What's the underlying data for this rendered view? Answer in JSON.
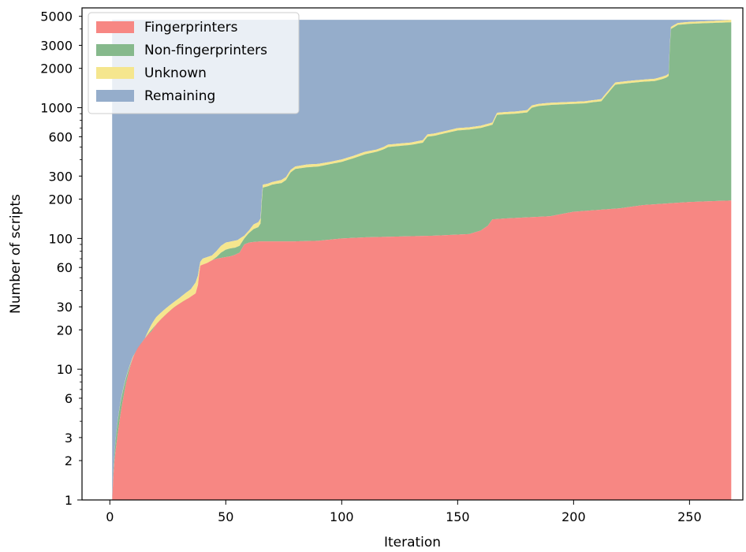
{
  "chart_data": {
    "type": "area",
    "stacked": true,
    "xlabel": "Iteration",
    "ylabel": "Number of scripts",
    "xlim": [
      -12,
      273
    ],
    "ylim": [
      1,
      5800
    ],
    "yscale": "log",
    "grid": false,
    "legend_position": "top-left",
    "x_ticks": [
      0,
      50,
      100,
      150,
      200,
      250
    ],
    "y_tick_labels": [
      "1",
      "2",
      "3",
      "6",
      "10",
      "20",
      "30",
      "60",
      "100",
      "200",
      "300",
      "600",
      "1000",
      "2000",
      "3000",
      "5000"
    ],
    "legend": [
      "Fingerprinters",
      "Non-fingerprinters",
      "Unknown",
      "Remaining"
    ],
    "colors": {
      "Fingerprinters": "#f78783",
      "Non-fingerprinters": "#86b98c",
      "Unknown": "#f5e68e",
      "Remaining": "#95adcb"
    },
    "total": 4700,
    "series": [
      {
        "name": "Fingerprinters",
        "points": [
          [
            1,
            1
          ],
          [
            2,
            2
          ],
          [
            3,
            2.8
          ],
          [
            4,
            3.8
          ],
          [
            5,
            5
          ],
          [
            6,
            6.3
          ],
          [
            7,
            7.8
          ],
          [
            8,
            9.2
          ],
          [
            9,
            10.8
          ],
          [
            10,
            12.3
          ],
          [
            12,
            14.5
          ],
          [
            14,
            16.2
          ],
          [
            16,
            18
          ],
          [
            18,
            19.5
          ],
          [
            20,
            22
          ],
          [
            22,
            24
          ],
          [
            25,
            27
          ],
          [
            28,
            30
          ],
          [
            31,
            32.5
          ],
          [
            34,
            35
          ],
          [
            37,
            38
          ],
          [
            38,
            44
          ],
          [
            39,
            62
          ],
          [
            40,
            63
          ],
          [
            42,
            65
          ],
          [
            44,
            68
          ],
          [
            46,
            70
          ],
          [
            48,
            71
          ],
          [
            50,
            72
          ],
          [
            52,
            73
          ],
          [
            54,
            75
          ],
          [
            56,
            78
          ],
          [
            58,
            90
          ],
          [
            60,
            93
          ],
          [
            62,
            94
          ],
          [
            65,
            95
          ],
          [
            70,
            95
          ],
          [
            80,
            95
          ],
          [
            90,
            96
          ],
          [
            100,
            100
          ],
          [
            110,
            102
          ],
          [
            120,
            103
          ],
          [
            130,
            104
          ],
          [
            140,
            105
          ],
          [
            150,
            107
          ],
          [
            155,
            108
          ],
          [
            160,
            115
          ],
          [
            163,
            125
          ],
          [
            165,
            140
          ],
          [
            170,
            142
          ],
          [
            180,
            145
          ],
          [
            190,
            148
          ],
          [
            200,
            160
          ],
          [
            210,
            165
          ],
          [
            220,
            170
          ],
          [
            230,
            180
          ],
          [
            240,
            185
          ],
          [
            250,
            190
          ],
          [
            260,
            193
          ],
          [
            268,
            195
          ]
        ]
      },
      {
        "name": "Non-fingerprinters",
        "points": [
          [
            1,
            1
          ],
          [
            10,
            12.3
          ],
          [
            20,
            22
          ],
          [
            30,
            31
          ],
          [
            37,
            38
          ],
          [
            38,
            44
          ],
          [
            39,
            62
          ],
          [
            40,
            63
          ],
          [
            42,
            65
          ],
          [
            44,
            68
          ],
          [
            46,
            72
          ],
          [
            48,
            78
          ],
          [
            50,
            82
          ],
          [
            52,
            84
          ],
          [
            54,
            85
          ],
          [
            56,
            88
          ],
          [
            58,
            100
          ],
          [
            60,
            110
          ],
          [
            62,
            118
          ],
          [
            64,
            122
          ],
          [
            65,
            130
          ],
          [
            66,
            245
          ],
          [
            68,
            250
          ],
          [
            70,
            258
          ],
          [
            72,
            262
          ],
          [
            74,
            265
          ],
          [
            76,
            280
          ],
          [
            78,
            320
          ],
          [
            80,
            340
          ],
          [
            85,
            350
          ],
          [
            90,
            355
          ],
          [
            95,
            370
          ],
          [
            100,
            385
          ],
          [
            105,
            410
          ],
          [
            110,
            440
          ],
          [
            115,
            460
          ],
          [
            118,
            480
          ],
          [
            120,
            500
          ],
          [
            125,
            510
          ],
          [
            130,
            520
          ],
          [
            135,
            540
          ],
          [
            137,
            600
          ],
          [
            140,
            610
          ],
          [
            145,
            640
          ],
          [
            150,
            670
          ],
          [
            155,
            680
          ],
          [
            160,
            700
          ],
          [
            165,
            740
          ],
          [
            167,
            880
          ],
          [
            170,
            890
          ],
          [
            175,
            900
          ],
          [
            180,
            920
          ],
          [
            182,
            1000
          ],
          [
            185,
            1030
          ],
          [
            190,
            1050
          ],
          [
            195,
            1060
          ],
          [
            200,
            1070
          ],
          [
            205,
            1080
          ],
          [
            208,
            1100
          ],
          [
            210,
            1110
          ],
          [
            212,
            1120
          ],
          [
            215,
            1300
          ],
          [
            218,
            1500
          ],
          [
            225,
            1550
          ],
          [
            230,
            1580
          ],
          [
            235,
            1600
          ],
          [
            238,
            1650
          ],
          [
            240,
            1700
          ],
          [
            241,
            1750
          ],
          [
            242,
            4000
          ],
          [
            245,
            4300
          ],
          [
            250,
            4380
          ],
          [
            255,
            4420
          ],
          [
            260,
            4450
          ],
          [
            265,
            4480
          ],
          [
            268,
            4500
          ]
        ]
      },
      {
        "name": "Unknown",
        "points": [
          [
            1,
            1
          ],
          [
            10,
            12.5
          ],
          [
            15,
            17
          ],
          [
            18,
            22
          ],
          [
            20,
            25
          ],
          [
            25,
            30
          ],
          [
            30,
            35
          ],
          [
            35,
            41
          ],
          [
            37,
            46
          ],
          [
            38,
            52
          ],
          [
            39,
            66
          ],
          [
            40,
            70
          ],
          [
            42,
            72
          ],
          [
            44,
            74
          ],
          [
            46,
            80
          ],
          [
            48,
            88
          ],
          [
            50,
            93
          ],
          [
            55,
            97
          ],
          [
            58,
            105
          ],
          [
            60,
            115
          ],
          [
            62,
            128
          ],
          [
            64,
            133
          ],
          [
            65,
            142
          ],
          [
            66,
            258
          ],
          [
            68,
            262
          ],
          [
            70,
            270
          ],
          [
            72,
            275
          ],
          [
            74,
            280
          ],
          [
            76,
            295
          ],
          [
            78,
            335
          ],
          [
            80,
            355
          ],
          [
            85,
            368
          ],
          [
            90,
            372
          ],
          [
            95,
            385
          ],
          [
            100,
            402
          ],
          [
            105,
            428
          ],
          [
            110,
            460
          ],
          [
            115,
            478
          ],
          [
            118,
            500
          ],
          [
            120,
            522
          ],
          [
            125,
            532
          ],
          [
            130,
            542
          ],
          [
            135,
            565
          ],
          [
            137,
            625
          ],
          [
            140,
            635
          ],
          [
            145,
            665
          ],
          [
            150,
            698
          ],
          [
            155,
            708
          ],
          [
            160,
            728
          ],
          [
            165,
            770
          ],
          [
            167,
            915
          ],
          [
            170,
            925
          ],
          [
            175,
            935
          ],
          [
            180,
            958
          ],
          [
            182,
            1040
          ],
          [
            185,
            1070
          ],
          [
            190,
            1090
          ],
          [
            195,
            1100
          ],
          [
            200,
            1110
          ],
          [
            205,
            1120
          ],
          [
            208,
            1140
          ],
          [
            210,
            1150
          ],
          [
            212,
            1165
          ],
          [
            215,
            1350
          ],
          [
            218,
            1560
          ],
          [
            225,
            1610
          ],
          [
            230,
            1640
          ],
          [
            235,
            1665
          ],
          [
            238,
            1720
          ],
          [
            240,
            1770
          ],
          [
            241,
            1820
          ],
          [
            242,
            4150
          ],
          [
            245,
            4450
          ],
          [
            250,
            4530
          ],
          [
            255,
            4570
          ],
          [
            260,
            4610
          ],
          [
            265,
            4660
          ],
          [
            268,
            4700
          ]
        ]
      },
      {
        "name": "Remaining",
        "points": [
          [
            1,
            4700
          ],
          [
            268,
            4700
          ]
        ]
      }
    ]
  }
}
